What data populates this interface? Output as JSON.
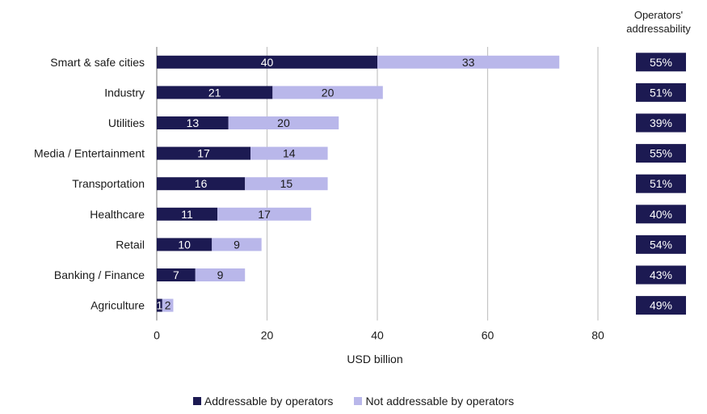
{
  "chart_data": {
    "type": "bar",
    "orientation": "horizontal",
    "stacked": true,
    "categories": [
      "Smart & safe cities",
      "Industry",
      "Utilities",
      "Media / Entertainment",
      "Transportation",
      "Healthcare",
      "Retail",
      "Banking / Finance",
      "Agriculture"
    ],
    "series": [
      {
        "name": "Addressable by operators",
        "values": [
          40,
          21,
          13,
          17,
          16,
          11,
          10,
          7,
          1
        ],
        "color": "#1c1a52",
        "label_color": "#ffffff"
      },
      {
        "name": "Not addressable by operators",
        "values": [
          33,
          20,
          20,
          14,
          15,
          17,
          9,
          9,
          2
        ],
        "color": "#b9b7ea",
        "label_color": "#1a1a1a"
      }
    ],
    "xlabel": "USD billion",
    "xlim": [
      0,
      80
    ],
    "xticks": [
      0,
      20,
      40,
      60,
      80
    ],
    "grid": "vertical",
    "legend_position": "bottom",
    "side_table": {
      "header": [
        "Operators'",
        "addressability"
      ],
      "values": [
        "55%",
        "51%",
        "39%",
        "55%",
        "51%",
        "40%",
        "54%",
        "43%",
        "49%"
      ],
      "box_color": "#1c1a52",
      "text_color": "#ffffff"
    }
  }
}
